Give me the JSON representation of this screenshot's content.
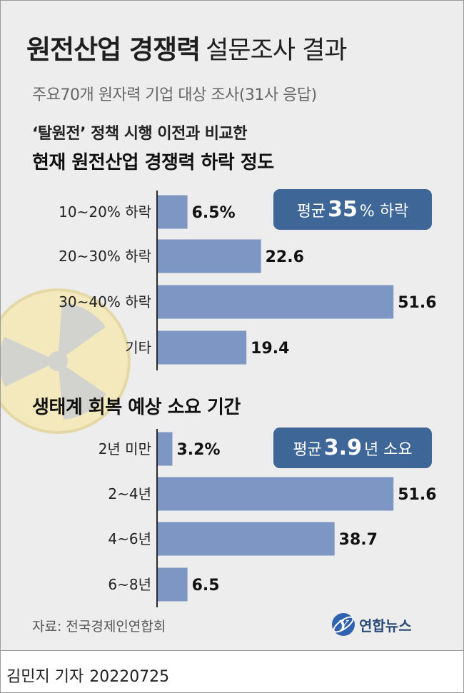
{
  "title_bold": "원전산업 경쟁력",
  "title_light": "설문조사 결과",
  "subtitle": "주요70개 원자력 기업 대상 조사(31사 응답)",
  "colors": {
    "bar": "#7d96c3",
    "axis": "#2a2a2a",
    "badge": "#3e6797",
    "background": "#ededed",
    "symbol": "#f3e9bd"
  },
  "chart_data": [
    {
      "type": "bar",
      "orientation": "horizontal",
      "title_line1": "‘탈원전’ 정책 시행 이전과 비교한",
      "title_line2": "현재 원전산업 경쟁력 하락 정도",
      "categories": [
        "10~20% 하락",
        "20~30% 하락",
        "30~40% 하락",
        "기타"
      ],
      "values": [
        6.5,
        22.6,
        51.6,
        19.4
      ],
      "value_labels": [
        "6.5%",
        "22.6",
        "51.6",
        "19.4"
      ],
      "average": {
        "prefix": "평균",
        "value": "35",
        "suffix": "% 하락"
      }
    },
    {
      "type": "bar",
      "orientation": "horizontal",
      "title": "생태계 회복 예상 소요 기간",
      "categories": [
        "2년 미만",
        "2~4년",
        "4~6년",
        "6~8년"
      ],
      "values": [
        3.2,
        51.6,
        38.7,
        6.5
      ],
      "value_labels": [
        "3.2%",
        "51.6",
        "38.7",
        "6.5"
      ],
      "average": {
        "prefix": "평균",
        "value": "3.9",
        "suffix": "년 소요"
      }
    }
  ],
  "source": "자료: 전국경제인연합회",
  "logo_text": "연합뉴스",
  "logo_mark": "Y",
  "reporter": "김민지 기자",
  "date": "20220725"
}
